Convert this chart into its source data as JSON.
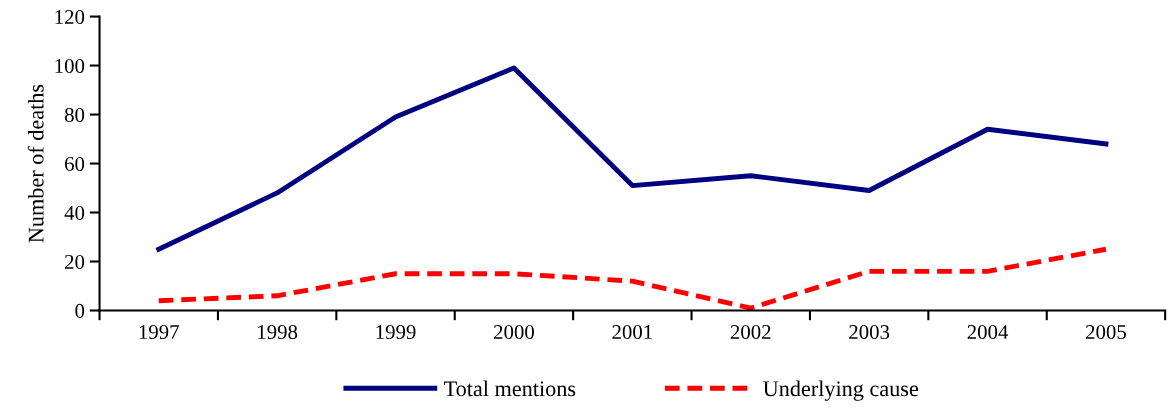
{
  "chart_data": {
    "type": "line",
    "ylabel": "Number of deaths",
    "categories": [
      "1997",
      "1998",
      "1999",
      "2000",
      "2001",
      "2002",
      "2003",
      "2004",
      "2005"
    ],
    "series": [
      {
        "name": "Total mentions",
        "color": "#000080",
        "line_style": "solid",
        "values": [
          25,
          48,
          79,
          99,
          51,
          55,
          49,
          74,
          68
        ]
      },
      {
        "name": "Underlying cause",
        "color": "#ff0000",
        "line_style": "dashed",
        "values": [
          4,
          6,
          15,
          15,
          12,
          1,
          16,
          16,
          25
        ]
      }
    ],
    "ylim": [
      0,
      120
    ],
    "yticks": [
      0,
      20,
      40,
      60,
      80,
      100,
      120
    ],
    "grid": false,
    "legend": "bottom",
    "marker": "none"
  }
}
